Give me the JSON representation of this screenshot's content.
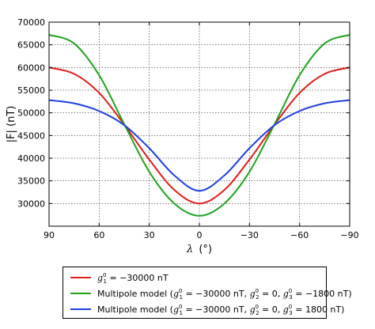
{
  "chart_data": {
    "type": "line",
    "xlabel_symbol": "λ",
    "xlabel_unit": "(°)",
    "ylabel": "|F| (nT)",
    "xlim": [
      90,
      -90
    ],
    "ylim": [
      25000,
      70000
    ],
    "x_ticks": [
      90,
      60,
      30,
      0,
      -30,
      -60,
      -90
    ],
    "x_tick_labels": [
      "90",
      "60",
      "30",
      "0",
      "−30",
      "−60",
      "−90"
    ],
    "y_ticks": [
      25000,
      30000,
      35000,
      40000,
      45000,
      50000,
      55000,
      60000,
      65000,
      70000
    ],
    "y_tick_labels": [
      "",
      "30000",
      "35000",
      "40000",
      "45000",
      "50000",
      "55000",
      "60000",
      "65000",
      "70000"
    ],
    "grid": true,
    "legend_position": "below",
    "series": [
      {
        "color": "#e01b1b",
        "x": [
          90,
          75,
          60,
          45,
          30,
          15,
          0,
          -15,
          -30,
          -45,
          -60,
          -75,
          -90
        ],
        "values": [
          60000,
          58600,
          54400,
          47400,
          39700,
          33000,
          30000,
          33000,
          39700,
          47400,
          54400,
          58600,
          60000
        ]
      },
      {
        "color": "#1fa11f",
        "x": [
          90,
          75,
          60,
          45,
          30,
          15,
          0,
          -15,
          -30,
          -45,
          -60,
          -75,
          -90
        ],
        "values": [
          67200,
          65300,
          58300,
          47500,
          37000,
          30000,
          27300,
          30000,
          37000,
          47500,
          58300,
          65300,
          67200
        ]
      },
      {
        "color": "#1f3fe0",
        "x": [
          90,
          75,
          60,
          45,
          30,
          15,
          0,
          -15,
          -30,
          -45,
          -60,
          -75,
          -90
        ],
        "values": [
          52800,
          52100,
          50400,
          47300,
          42200,
          36200,
          32800,
          36200,
          42200,
          47300,
          50400,
          52100,
          52800
        ]
      }
    ]
  },
  "legend": {
    "items": [
      {
        "color": "#e01b1b",
        "prefix": "",
        "parts": [
          {
            "sym": "g",
            "sup": "0",
            "sub": "1",
            "val": " = −30000 nT"
          }
        ],
        "suffix": ""
      },
      {
        "color": "#1fa11f",
        "prefix": "Multipole model (",
        "parts": [
          {
            "sym": "g",
            "sup": "0",
            "sub": "1",
            "val": " = −30000 nT, "
          },
          {
            "sym": "g",
            "sup": "0",
            "sub": "2",
            "val": " = 0, "
          },
          {
            "sym": "g",
            "sup": "0",
            "sub": "3",
            "val": " = −1800 nT"
          }
        ],
        "suffix": ")"
      },
      {
        "color": "#1f3fe0",
        "prefix": "Multipole model (",
        "parts": [
          {
            "sym": "g",
            "sup": "0",
            "sub": "1",
            "val": " = −30000 nT, "
          },
          {
            "sym": "g",
            "sup": "0",
            "sub": "2",
            "val": " = 0, "
          },
          {
            "sym": "g",
            "sup": "0",
            "sub": "3",
            "val": " = 1800 nT"
          }
        ],
        "suffix": ")"
      }
    ]
  }
}
